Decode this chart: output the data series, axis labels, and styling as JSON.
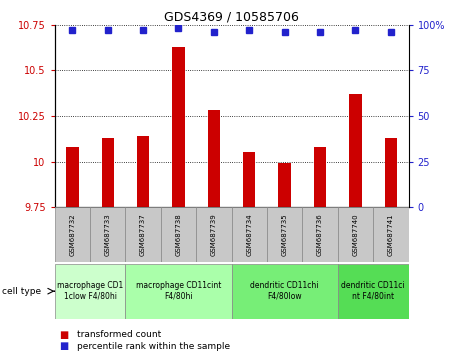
{
  "title": "GDS4369 / 10585706",
  "samples": [
    "GSM687732",
    "GSM687733",
    "GSM687737",
    "GSM687738",
    "GSM687739",
    "GSM687734",
    "GSM687735",
    "GSM687736",
    "GSM687740",
    "GSM687741"
  ],
  "transformed_counts": [
    10.08,
    10.13,
    10.14,
    10.63,
    10.28,
    10.05,
    9.99,
    10.08,
    10.37,
    10.13
  ],
  "percentile_ranks": [
    97,
    97,
    97,
    98,
    96,
    97,
    96,
    96,
    97,
    96
  ],
  "ylim": [
    9.75,
    10.75
  ],
  "yticks": [
    9.75,
    10.0,
    10.25,
    10.5,
    10.75
  ],
  "ytick_labels": [
    "9.75",
    "10",
    "10.25",
    "10.5",
    "10.75"
  ],
  "right_ylim": [
    0,
    100
  ],
  "right_yticks": [
    0,
    25,
    50,
    75,
    100
  ],
  "right_ytick_labels": [
    "0",
    "25",
    "50",
    "75",
    "100%"
  ],
  "bar_color": "#cc0000",
  "dot_color": "#2222cc",
  "bar_baseline": 9.75,
  "cell_groups": [
    {
      "label": "macrophage CD1\n1clow F4/80hi",
      "start": 0,
      "end": 2,
      "color": "#ccffcc"
    },
    {
      "label": "macrophage CD11cint\nF4/80hi",
      "start": 2,
      "end": 5,
      "color": "#aaffaa"
    },
    {
      "label": "dendritic CD11chi\nF4/80low",
      "start": 5,
      "end": 8,
      "color": "#77ee77"
    },
    {
      "label": "dendritic CD11ci\nnt F4/80int",
      "start": 8,
      "end": 10,
      "color": "#55dd55"
    }
  ],
  "legend_bar_label": "transformed count",
  "legend_dot_label": "percentile rank within the sample",
  "cell_type_label": "cell type"
}
